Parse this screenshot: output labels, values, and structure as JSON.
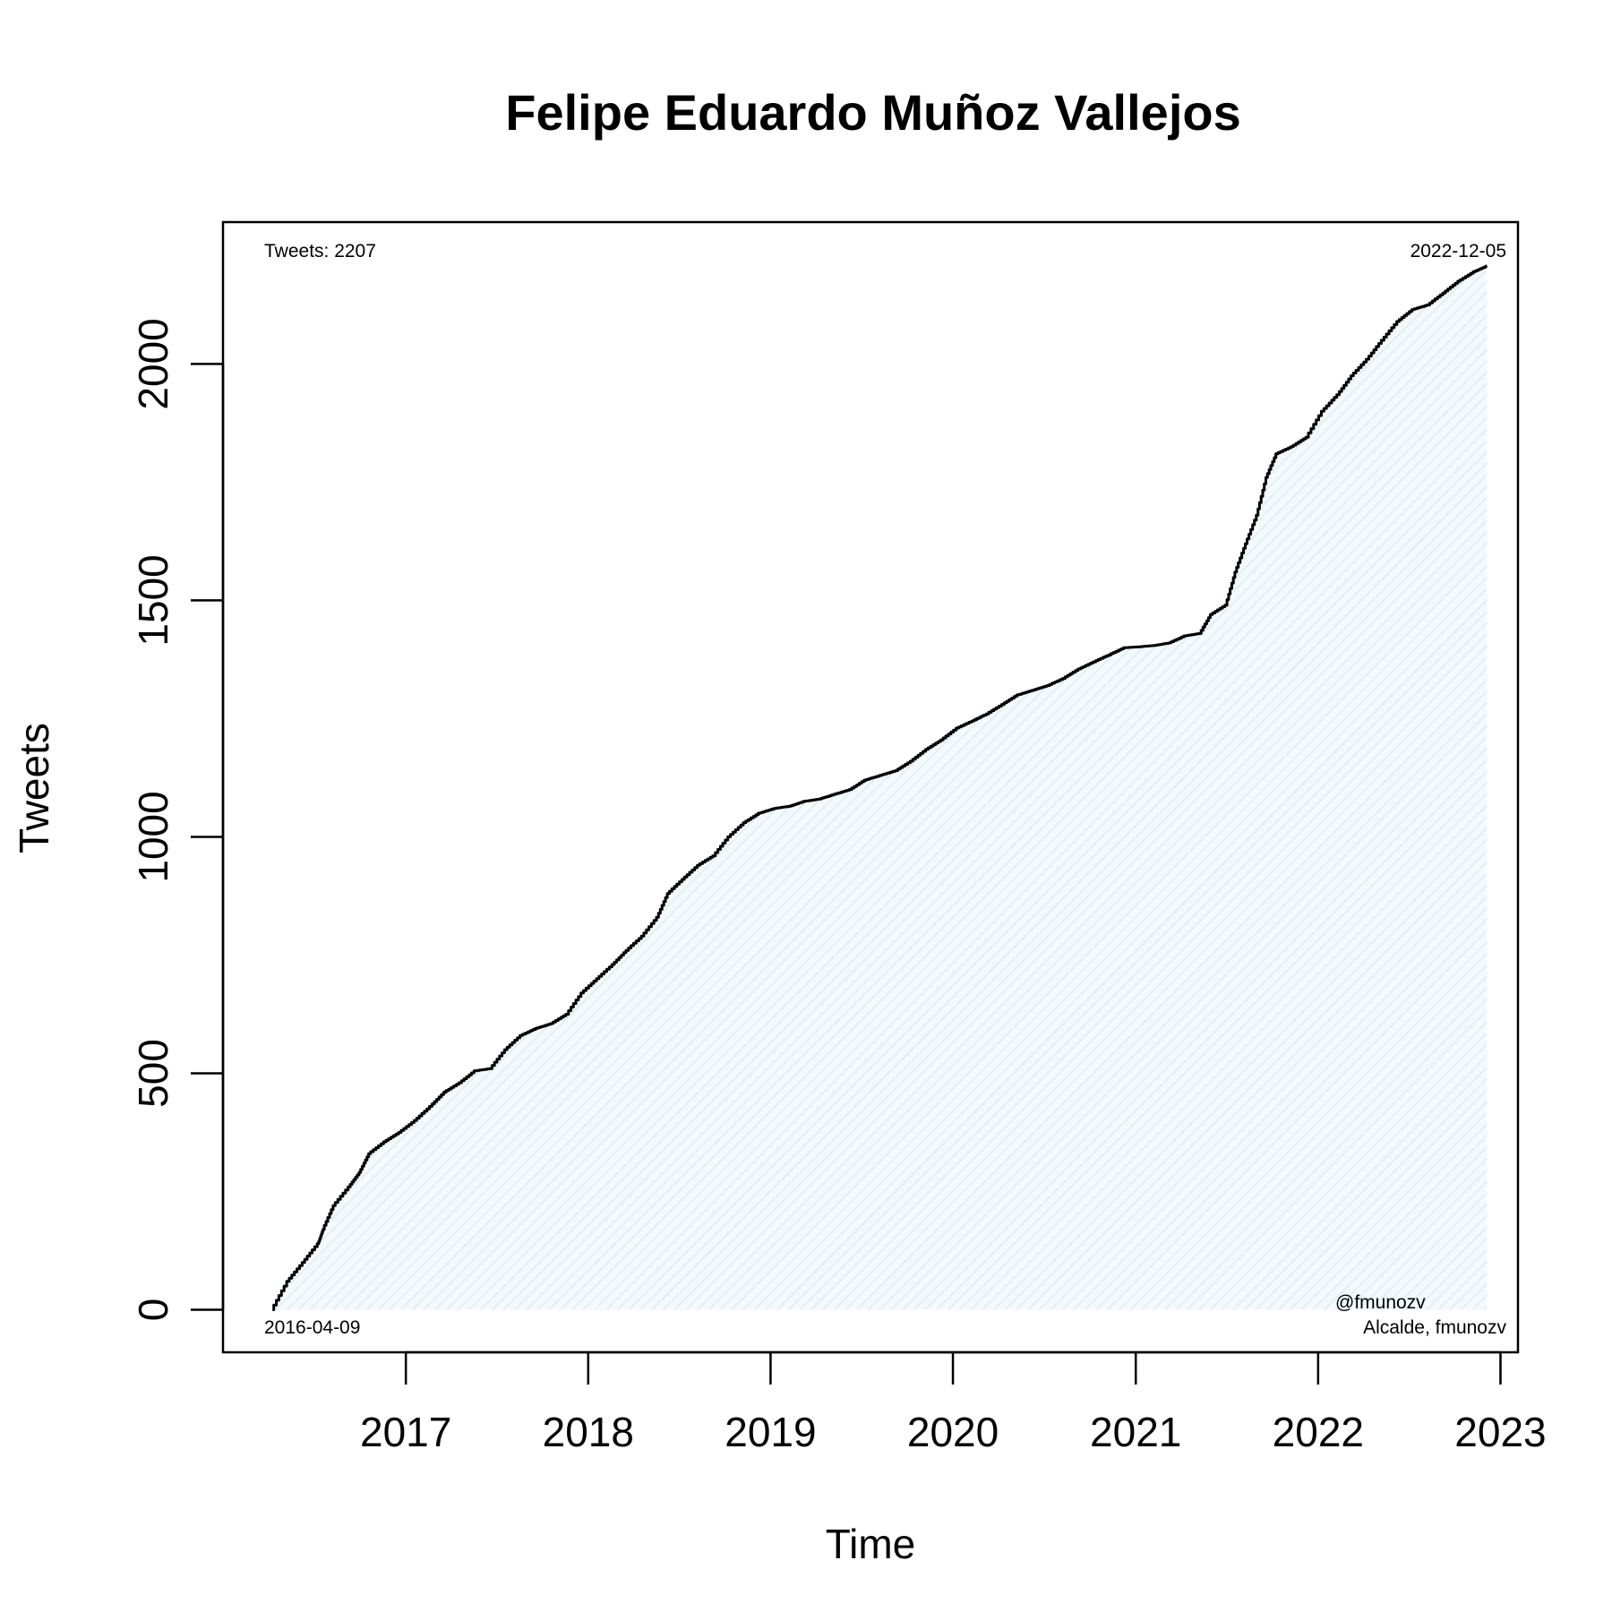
{
  "chart_data": {
    "type": "area",
    "title": "Felipe Eduardo Muñoz Vallejos",
    "xlabel": "Time",
    "ylabel": "Tweets",
    "xlim": [
      "2016-01-01",
      "2023-02-05"
    ],
    "ylim": [
      -90,
      2300
    ],
    "x_ticks": [
      "2017",
      "2018",
      "2019",
      "2020",
      "2021",
      "2022",
      "2023"
    ],
    "y_ticks": [
      0,
      500,
      1000,
      1500,
      2000
    ],
    "grid": false,
    "fill_color": "#e8f4f8",
    "line_color": "#000000",
    "annotations": {
      "total": "Tweets: 2207",
      "end_date": "2022-12-05",
      "start_date": "2016-04-09",
      "handle": "@fmunozv",
      "description": "Alcalde, fmunozv"
    },
    "series": [
      {
        "points": [
          [
            "2016-04-09",
            0
          ],
          [
            "2016-05-10",
            60
          ],
          [
            "2016-06-10",
            100
          ],
          [
            "2016-07-10",
            140
          ],
          [
            "2016-07-20",
            170
          ],
          [
            "2016-08-10",
            220
          ],
          [
            "2016-09-10",
            260
          ],
          [
            "2016-10-01",
            290
          ],
          [
            "2016-10-20",
            330
          ],
          [
            "2016-11-20",
            355
          ],
          [
            "2016-12-20",
            375
          ],
          [
            "2017-01-20",
            400
          ],
          [
            "2017-02-20",
            430
          ],
          [
            "2017-03-20",
            460
          ],
          [
            "2017-04-20",
            480
          ],
          [
            "2017-05-20",
            505
          ],
          [
            "2017-06-20",
            510
          ],
          [
            "2017-07-20",
            550
          ],
          [
            "2017-08-20",
            580
          ],
          [
            "2017-09-20",
            595
          ],
          [
            "2017-10-20",
            605
          ],
          [
            "2017-11-20",
            625
          ],
          [
            "2017-12-20",
            670
          ],
          [
            "2018-01-20",
            700
          ],
          [
            "2018-02-20",
            730
          ],
          [
            "2018-03-20",
            760
          ],
          [
            "2018-04-20",
            790
          ],
          [
            "2018-05-20",
            830
          ],
          [
            "2018-06-10",
            880
          ],
          [
            "2018-07-10",
            910
          ],
          [
            "2018-08-10",
            940
          ],
          [
            "2018-09-10",
            960
          ],
          [
            "2018-10-10",
            1000
          ],
          [
            "2018-11-10",
            1030
          ],
          [
            "2018-12-10",
            1050
          ],
          [
            "2019-01-10",
            1060
          ],
          [
            "2019-02-10",
            1065
          ],
          [
            "2019-03-10",
            1075
          ],
          [
            "2019-04-10",
            1080
          ],
          [
            "2019-05-10",
            1090
          ],
          [
            "2019-06-10",
            1100
          ],
          [
            "2019-07-10",
            1120
          ],
          [
            "2019-08-10",
            1130
          ],
          [
            "2019-09-10",
            1140
          ],
          [
            "2019-10-10",
            1160
          ],
          [
            "2019-11-10",
            1185
          ],
          [
            "2019-12-10",
            1205
          ],
          [
            "2020-01-10",
            1230
          ],
          [
            "2020-02-10",
            1245
          ],
          [
            "2020-03-10",
            1260
          ],
          [
            "2020-04-10",
            1280
          ],
          [
            "2020-05-10",
            1300
          ],
          [
            "2020-06-10",
            1310
          ],
          [
            "2020-07-10",
            1320
          ],
          [
            "2020-08-10",
            1335
          ],
          [
            "2020-09-10",
            1355
          ],
          [
            "2020-10-10",
            1370
          ],
          [
            "2020-11-10",
            1385
          ],
          [
            "2020-12-10",
            1400
          ],
          [
            "2021-01-10",
            1402
          ],
          [
            "2021-02-10",
            1405
          ],
          [
            "2021-03-10",
            1410
          ],
          [
            "2021-04-10",
            1425
          ],
          [
            "2021-05-10",
            1430
          ],
          [
            "2021-06-01",
            1470
          ],
          [
            "2021-07-01",
            1490
          ],
          [
            "2021-07-20",
            1560
          ],
          [
            "2021-08-10",
            1620
          ],
          [
            "2021-09-01",
            1680
          ],
          [
            "2021-09-20",
            1760
          ],
          [
            "2021-10-10",
            1810
          ],
          [
            "2021-11-10",
            1825
          ],
          [
            "2021-12-10",
            1845
          ],
          [
            "2022-01-10",
            1900
          ],
          [
            "2022-02-10",
            1935
          ],
          [
            "2022-03-10",
            1975
          ],
          [
            "2022-04-10",
            2010
          ],
          [
            "2022-05-10",
            2050
          ],
          [
            "2022-06-10",
            2090
          ],
          [
            "2022-07-10",
            2115
          ],
          [
            "2022-08-10",
            2125
          ],
          [
            "2022-09-10",
            2150
          ],
          [
            "2022-10-10",
            2175
          ],
          [
            "2022-11-10",
            2195
          ],
          [
            "2022-12-05",
            2207
          ]
        ]
      }
    ]
  }
}
